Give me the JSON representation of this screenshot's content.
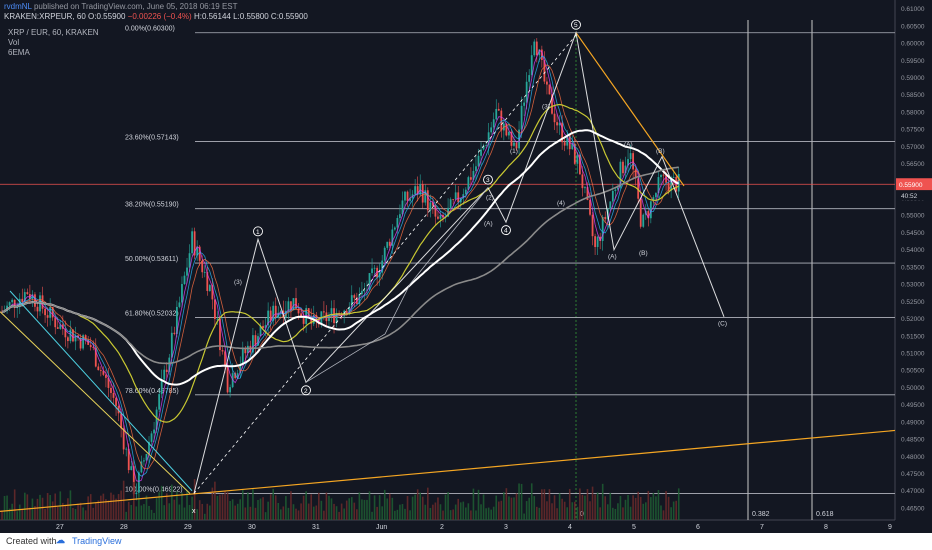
{
  "header": {
    "publisher": "rvdmNL",
    "published_text": "published on TradingView.com, June 05, 2018 06:19 EST",
    "symbol_line_prefix": "KRAKEN:XRPEUR, 60",
    "ohlc": {
      "o_label": "O:",
      "o": "0.55900",
      "change": "−0.00226 (−0.4%)",
      "h_label": "H:",
      "h": "0.56144",
      "l_label": "L:",
      "l": "0.55800",
      "c_label": "C:",
      "c": "0.55900"
    },
    "pair_title": "XRP / EUR, 60, KRAKEN",
    "indicator_vol": "Vol",
    "indicator_ema": "6EMA"
  },
  "footer": {
    "created_with": "Created with",
    "brand": "TradingView"
  },
  "colors": {
    "bg": "#131722",
    "up": "#26a69a",
    "down": "#ef5350",
    "fib": "#b2b5be",
    "orange": "#f5a623",
    "cyan": "#4dd0e1",
    "white": "#ffffff",
    "ema_yellow": "#c8c832",
    "ma_gray": "#8a8a8a",
    "price_line": "#ef5350"
  },
  "chart_data": {
    "type": "candlestick",
    "title": "XRP / EUR, 60, KRAKEN",
    "ylim": [
      0.4615,
      0.6125
    ],
    "y_ticks": [
      "0.61000",
      "0.60500",
      "0.60000",
      "0.59500",
      "0.59000",
      "0.58500",
      "0.58000",
      "0.57500",
      "0.57000",
      "0.56500",
      "0.56000",
      "0.55500",
      "0.55000",
      "0.54500",
      "0.54000",
      "0.53500",
      "0.53000",
      "0.52500",
      "0.52000",
      "0.51500",
      "0.51000",
      "0.50500",
      "0.50000",
      "0.49500",
      "0.49000",
      "0.48500",
      "0.48000",
      "0.47500",
      "0.47000",
      "0.46500"
    ],
    "x_labels": [
      "27",
      "28",
      "29",
      "30",
      "31",
      "Jun",
      "2",
      "3",
      "4",
      "5",
      "6",
      "7",
      "8",
      "9"
    ],
    "last_price": "0.55900",
    "countdown": "40:52",
    "fib_levels": [
      {
        "label": "0.00%(0.60300)",
        "price": 0.603
      },
      {
        "label": "23.60%(0.57143)",
        "price": 0.57143
      },
      {
        "label": "38.20%(0.55190)",
        "price": 0.5519
      },
      {
        "label": "50.00%(0.53611)",
        "price": 0.53611
      },
      {
        "label": "61.80%(0.52032)",
        "price": 0.52032
      },
      {
        "label": "78.60%(0.49785)",
        "price": 0.49785
      },
      {
        "label": "100.00%(0.46922)",
        "price": 0.46922
      }
    ],
    "time_fib_labels": [
      "0",
      "0.382",
      "0.618"
    ],
    "wave_labels": {
      "major": [
        "1",
        "2",
        "3",
        "4",
        "5"
      ],
      "minor": [
        "(3)",
        "(4)",
        "(5)",
        "(1)",
        "(2)",
        "(A)",
        "(B)",
        "(C)",
        "(A)",
        "(B)"
      ],
      "bottom_marker": "x"
    },
    "candles_hint": "Hourly candles: low near 0.4692 on 29th, rally to 0.543 (wave 1), dip to 0.5015 (wave 2), rise to 0.558 (wave 3), pullback 0.547 (wave 4), peak 0.603 (wave 5), correction to 0.540 (A), bounce 0.567 (B), last 0.5590"
  }
}
